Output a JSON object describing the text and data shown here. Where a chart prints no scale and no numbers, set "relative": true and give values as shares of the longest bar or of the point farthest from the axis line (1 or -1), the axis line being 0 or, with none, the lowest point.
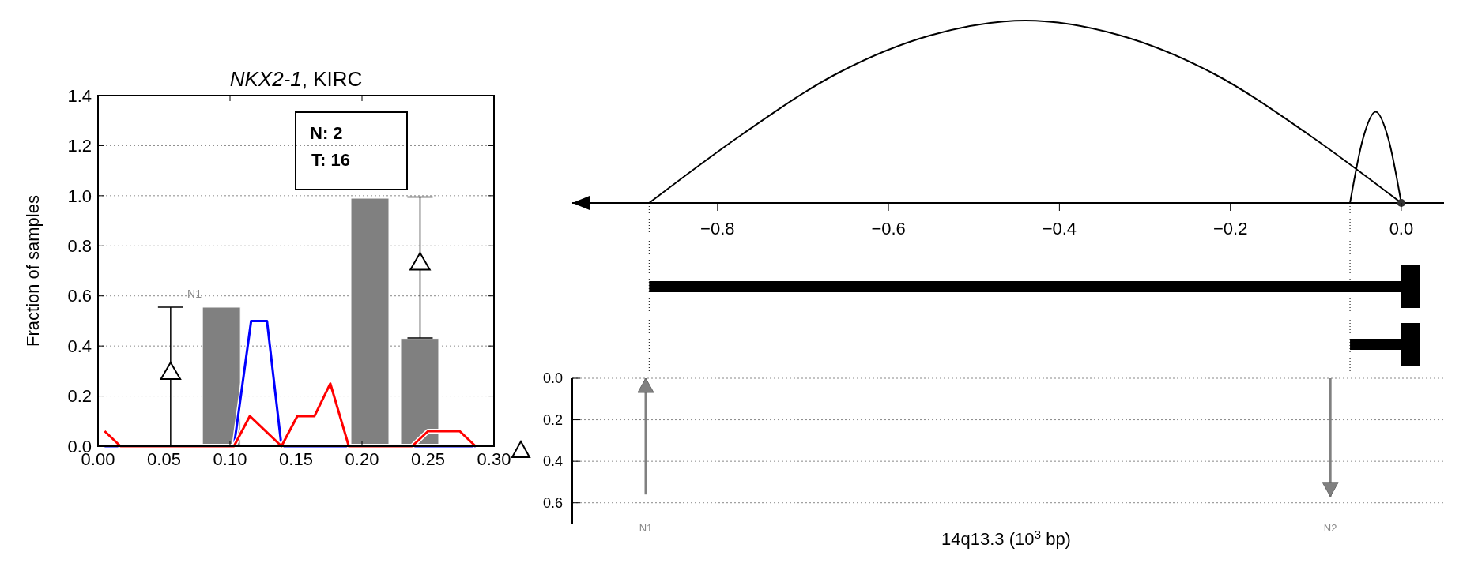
{
  "chart_data": [
    {
      "type": "bar",
      "title": "NKX2-1, KIRC",
      "ylabel": "Fraction of samples",
      "xlim": [
        0,
        0.3
      ],
      "xticks": [
        {
          "value": 0,
          "label": "0.00"
        },
        {
          "value": 0.05,
          "label": "0.05"
        },
        {
          "value": 0.1,
          "label": "0.10"
        },
        {
          "value": 0.15,
          "label": "0.15"
        },
        {
          "value": 0.2,
          "label": "0.20"
        },
        {
          "value": 0.25,
          "label": "0.25"
        },
        {
          "value": 0.3,
          "label": "0.30"
        }
      ],
      "ylim": [
        0,
        1.4
      ],
      "yticks": [
        {
          "value": 0,
          "label": "0.0"
        },
        {
          "value": 0.2,
          "label": "0.2"
        },
        {
          "value": 0.4,
          "label": "0.4"
        },
        {
          "value": 0.6,
          "label": "0.6"
        },
        {
          "value": 0.8,
          "label": "0.8"
        },
        {
          "value": 1,
          "label": "1.0"
        },
        {
          "value": 1.2,
          "label": "1.2"
        },
        {
          "value": 1.4,
          "label": "1.4"
        }
      ],
      "grid": "y",
      "annotations": [
        "N: 2",
        "T: 16",
        "N1"
      ],
      "series": [
        {
          "color": "#808080",
          "x": [
            0.0935,
            0.206,
            0.2437
          ],
          "values": [
            0.555,
            0.99,
            0.43
          ]
        },
        {
          "type": "line",
          "color": "#0000ff",
          "x": [
            0.005,
            0.103,
            0.116,
            0.128,
            0.139,
            0.286
          ],
          "values": [
            0,
            0,
            0.5,
            0.5,
            0,
            0
          ]
        },
        {
          "type": "line",
          "color": "#ff0000",
          "x": [
            0.005,
            0.017,
            0.103,
            0.115,
            0.139,
            0.151,
            0.164,
            0.176,
            0.19,
            0.238,
            0.25,
            0.274,
            0.286
          ],
          "values": [
            0.06,
            0,
            0,
            0.12,
            0,
            0.12,
            0.12,
            0.25,
            0,
            0,
            0.06,
            0.06,
            0
          ]
        },
        {
          "type": "scatter",
          "color": "#000000",
          "marker": "triangle",
          "x": [
            0.055,
            0.244
          ],
          "values": [
            0.29,
            0.727
          ],
          "errors": [
            [
              0,
              0.555
            ],
            [
              0.432,
              0.995
            ]
          ]
        }
      ]
    },
    {
      "type": "line",
      "relative": true,
      "xlim": [
        -0.97,
        0.05
      ],
      "xticks": [
        {
          "value": -0.8,
          "label": "−0.8"
        },
        {
          "value": -0.6,
          "label": "−0.6"
        },
        {
          "value": -0.4,
          "label": "−0.4"
        },
        {
          "value": -0.2,
          "label": "−0.2"
        },
        {
          "value": 0,
          "label": "0.0"
        }
      ],
      "series": [
        {
          "color": "#000000",
          "x": [
            -0.88,
            -0.77,
            -0.66,
            -0.55,
            -0.44,
            -0.33,
            -0.22,
            -0.11,
            0
          ],
          "values": [
            0,
            0.38,
            0.71,
            0.92,
            1,
            0.92,
            0.71,
            0.38,
            0
          ]
        },
        {
          "color": "#000000",
          "x": [
            -0.06,
            -0.045,
            -0.03,
            -0.015,
            0
          ],
          "values": [
            0,
            0.35,
            0.5,
            0.35,
            0
          ]
        },
        {
          "type": "scatter",
          "color": "#333333",
          "marker": "circle",
          "x": [
            0
          ],
          "values": [
            0
          ]
        }
      ]
    },
    {
      "type": "bar",
      "orientation": "horizontal",
      "categories": [
        null,
        null
      ],
      "base": [
        -0.88,
        -0.06
      ],
      "values": [
        0.88,
        0.06
      ],
      "color": "#000000",
      "xlim": [
        -0.97,
        0.05
      ],
      "tick_labels": false,
      "ref_lines": [
        {
          "axis": "x",
          "value": -0.88,
          "line_style": "dotted"
        },
        {
          "axis": "x",
          "value": -0.06,
          "line_style": "dotted"
        }
      ]
    },
    {
      "type": "bar",
      "x": [
        -0.884,
        -0.083
      ],
      "values": [
        0.56,
        0.57
      ],
      "color": "#808080",
      "xlabel": "14q13.3 (10$^{3}$ bp)",
      "xlim": [
        -0.97,
        0.05
      ],
      "ylim": [
        0.7,
        0
      ],
      "yticks": [
        {
          "value": 0,
          "label": "0.0"
        },
        {
          "value": 0.2,
          "label": "0.2"
        },
        {
          "value": 0.4,
          "label": "0.4"
        },
        {
          "value": 0.6,
          "label": "0.6"
        }
      ],
      "grid": "y",
      "tick_labels": "y",
      "annotations": [
        "N1",
        "N2"
      ]
    }
  ]
}
